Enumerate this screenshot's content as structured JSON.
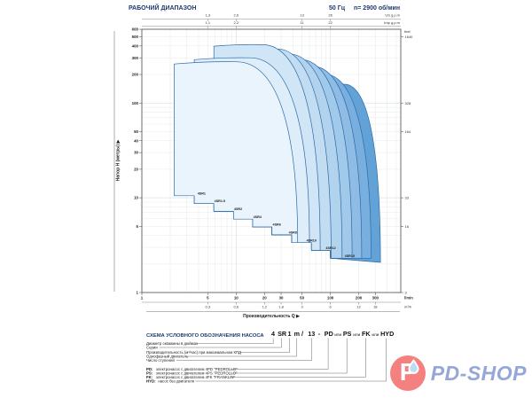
{
  "header": {
    "title": "РАБОЧИЙ ДИАПАЗОН",
    "frequency": "50 Гц",
    "speed": "n= 2900 об/мин"
  },
  "chart_data": {
    "type": "area",
    "title": "РАБОЧИЙ ДИАПАЗОН",
    "legend_position": "none",
    "grid": true,
    "x_axis": {
      "label": "Производительность Q",
      "scale": "log",
      "range_lmin": [
        1,
        560
      ],
      "unit_primary": "l/min",
      "unit_secondary": "m³/h",
      "ticks_lmin": [
        1,
        5,
        10,
        20,
        30,
        50,
        100,
        200,
        300
      ],
      "ticks_m3h": {
        "labels": [
          "0,3",
          "0,6",
          "1,2",
          "1,8",
          "3",
          "6",
          "12",
          "18"
        ],
        "at_lmin": [
          5,
          10,
          20,
          30,
          50,
          100,
          200,
          300
        ]
      },
      "top_rows": [
        {
          "unit": "US g.p.m",
          "labels": [
            "1,3",
            "2,6",
            "13",
            "26"
          ],
          "at_lmin": [
            5,
            10,
            50,
            100
          ]
        },
        {
          "unit": "Imp g.p.m",
          "labels": [
            "1,1",
            "2,2",
            "11",
            "22"
          ],
          "at_lmin": [
            5,
            10,
            50,
            100
          ]
        }
      ]
    },
    "y_axis": {
      "label": "Напор H (метры)",
      "scale": "log",
      "range_m": [
        1,
        600
      ],
      "ticks_m": [
        600,
        500,
        400,
        300,
        200,
        100,
        50,
        40,
        30,
        20,
        10,
        5,
        1
      ],
      "right": {
        "unit": "feet",
        "labels": [
          "1640",
          "328",
          "164",
          "33",
          "16",
          "3"
        ],
        "at_m": [
          500,
          100,
          50,
          10,
          5,
          1
        ]
      }
    },
    "series": [
      {
        "name": "4SR1",
        "q_min": 2.2,
        "q_peak": 10,
        "q_max": 45,
        "h_bottom": 10.5,
        "h_top_left": 258,
        "h_peak": 272,
        "label_q": 4.3
      },
      {
        "name": "4SR1.5",
        "q_min": 3.6,
        "q_peak": 14,
        "q_max": 60,
        "h_bottom": 8.7,
        "h_top_left": 287,
        "h_peak": 300,
        "label_q": 6.7
      },
      {
        "name": "4SR2",
        "q_min": 5.8,
        "q_peak": 19,
        "q_max": 78,
        "h_bottom": 7.2,
        "h_top_left": 398,
        "h_peak": 413,
        "label_q": 10.5
      },
      {
        "name": "4SR4",
        "q_min": 9.4,
        "q_peak": 27,
        "q_max": 102,
        "h_bottom": 5.95,
        "h_top_left": 355,
        "h_peak": 372,
        "label_q": 16.8
      },
      {
        "name": "4SR6",
        "q_min": 15,
        "q_peak": 36,
        "q_max": 133,
        "h_bottom": 4.92,
        "h_top_left": 315,
        "h_peak": 330,
        "label_q": 27
      },
      {
        "name": "4SR8",
        "q_min": 24,
        "q_peak": 48,
        "q_max": 170,
        "h_bottom": 4.06,
        "h_top_left": 272,
        "h_peak": 288,
        "label_q": 40
      },
      {
        "name": "4SR10",
        "q_min": 39,
        "q_peak": 64,
        "q_max": 215,
        "h_bottom": 3.36,
        "h_top_left": 228,
        "h_peak": 245,
        "label_q": 63
      },
      {
        "name": "4SR12",
        "q_min": 63,
        "q_peak": 85,
        "q_max": 270,
        "h_bottom": 2.78,
        "h_top_left": 185,
        "h_peak": 203,
        "label_q": 101
      },
      {
        "name": "4SR15",
        "q_min": 100,
        "q_peak": 140,
        "q_max": 340,
        "h_bottom": 2.3,
        "h_top_left": 140,
        "h_peak": 158,
        "label_q": 160
      }
    ],
    "colors": {
      "stroke": "#2e6aa6",
      "fills": [
        "#eaf4fc",
        "#ddedf9",
        "#d0e5f6",
        "#c2dcf2",
        "#b2d3ee",
        "#a1c9e9",
        "#8ebce4",
        "#79afde",
        "#63a2d7"
      ],
      "grid_minor": "#e1e6ea",
      "grid_major": "#c9d1d8"
    }
  },
  "designation": {
    "title": "СХЕМА УСЛОВНОГО ОБОЗНАЧЕНИЯ НАСОСА",
    "code_tokens": [
      {
        "t": "4",
        "bold": true
      },
      {
        "t": "SR",
        "bold": true
      },
      {
        "t": "1",
        "bold": true
      },
      {
        "t": "m /",
        "bold": true
      },
      {
        "t": "13",
        "bold": true
      },
      {
        "t": "-",
        "bold": true
      },
      {
        "t": "PD",
        "bold": true
      },
      {
        "t": "или",
        "bold": false
      },
      {
        "t": "PS",
        "bold": true
      },
      {
        "t": "или",
        "bold": false
      },
      {
        "t": "FK",
        "bold": true
      },
      {
        "t": "или",
        "bold": false
      },
      {
        "t": "HYD",
        "bold": true
      }
    ],
    "param_rows": [
      "Диаметр скважины в дюймах",
      "Серия",
      "Производительность (м³/час) при максимальном КПД",
      "Однофазный двигатель",
      "Число ступеней"
    ],
    "motor_rows": [
      {
        "code": "PD:",
        "text": "электронасос с двигателем 4PD \"PEDROLLO\""
      },
      {
        "code": "PS:",
        "text": "электронасос с двигателем 4PS \"PEDROLLO\""
      },
      {
        "code": "FK:",
        "text": "электронасос с двигателем 4FK \"FRANKLIN\""
      },
      {
        "code": "HYD:",
        "text": "насос без двигателя"
      }
    ]
  },
  "logo": {
    "text": "PD-SHOP",
    "monogram": "P",
    "circle_color": "#f58080",
    "text_color": "#94a7d8"
  }
}
